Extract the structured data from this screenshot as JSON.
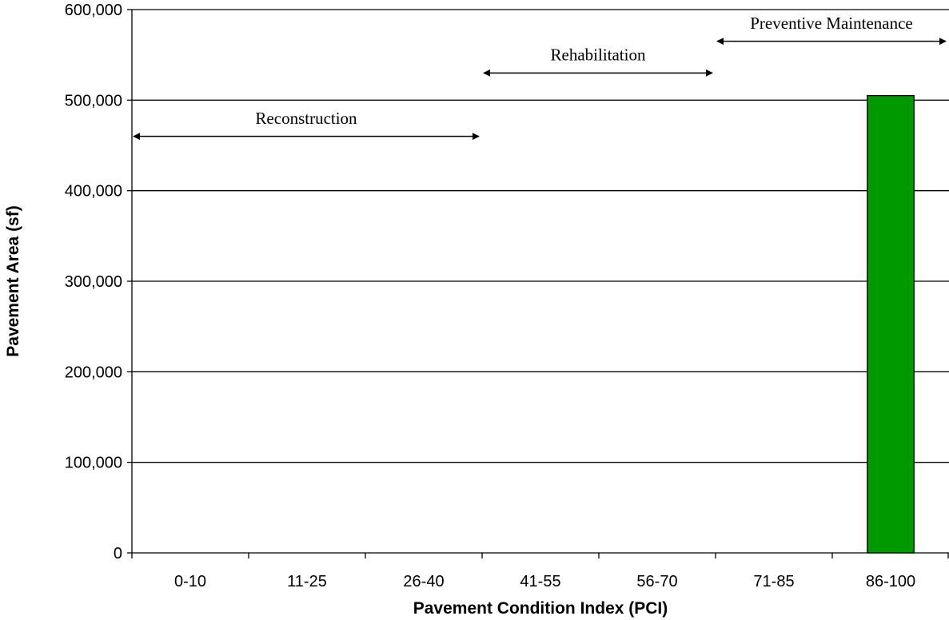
{
  "chart_data": {
    "type": "bar",
    "categories": [
      "0-10",
      "11-25",
      "26-40",
      "41-55",
      "56-70",
      "71-85",
      "86-100"
    ],
    "values": [
      0,
      0,
      0,
      0,
      0,
      0,
      505000
    ],
    "xlabel": "Pavement Condition Index (PCI)",
    "ylabel": "Pavement Area (sf)",
    "ylim": [
      0,
      600000
    ],
    "yticks": [
      0,
      100000,
      200000,
      300000,
      400000,
      500000,
      600000
    ],
    "ytick_labels": [
      "0",
      "100,000",
      "200,000",
      "300,000",
      "400,000",
      "500,000",
      "600,000"
    ],
    "grid": true,
    "bar_color": "#009900",
    "annotations": [
      {
        "label": "Reconstruction",
        "from_category": 0,
        "to_category": 2,
        "y": 460000,
        "label_y": 480000
      },
      {
        "label": "Rehabilitation",
        "from_category": 3,
        "to_category": 4,
        "y": 530000,
        "label_y": 550000
      },
      {
        "label": "Preventive Maintenance",
        "from_category": 5,
        "to_category": 6,
        "y": 565000,
        "label_y": 585000
      }
    ]
  }
}
